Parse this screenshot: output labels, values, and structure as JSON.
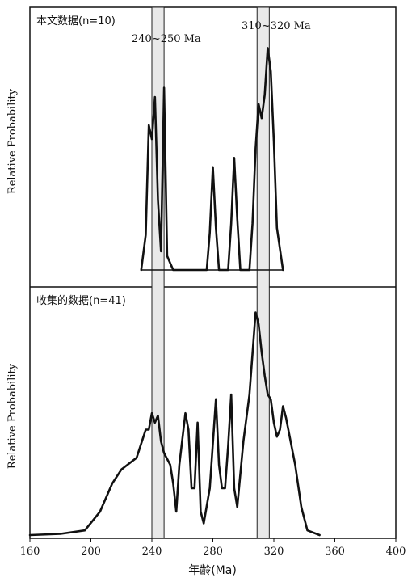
{
  "chart_data": {
    "type": "line",
    "xlabel": "年龄(Ma)",
    "ylabel": "Relative Probability",
    "xlim": [
      160,
      400
    ],
    "xticks": [
      160,
      200,
      240,
      280,
      320,
      360,
      400
    ],
    "highlight_bands": [
      {
        "label": "240~250 Ma",
        "range": [
          240,
          248
        ]
      },
      {
        "label": "310~320 Ma",
        "range": [
          309,
          317
        ]
      }
    ],
    "panels": [
      {
        "title": "本文数据(n=10)",
        "ylim": [
          0,
          1.0
        ],
        "series": {
          "x": [
            233,
            236,
            238,
            240,
            242,
            244,
            246,
            248,
            250,
            254,
            276,
            278,
            280,
            282,
            284,
            290,
            292,
            294,
            296,
            298,
            304,
            306,
            308,
            310,
            312,
            314,
            316,
            318,
            320,
            322,
            326
          ],
          "y": [
            0.0,
            0.15,
            0.62,
            0.56,
            0.74,
            0.3,
            0.08,
            0.78,
            0.06,
            0.0,
            0.0,
            0.16,
            0.44,
            0.18,
            0.0,
            0.0,
            0.2,
            0.48,
            0.22,
            0.0,
            0.0,
            0.2,
            0.52,
            0.71,
            0.65,
            0.75,
            0.95,
            0.85,
            0.55,
            0.18,
            0.0
          ]
        }
      },
      {
        "title": "收集的数据(n=41)",
        "ylim": [
          0,
          1.0
        ],
        "series": {
          "x": [
            160,
            180,
            196,
            206,
            214,
            220,
            224,
            230,
            236,
            238,
            240,
            242,
            244,
            246,
            248,
            252,
            254,
            256,
            258,
            262,
            264,
            266,
            268,
            270,
            272,
            274,
            278,
            282,
            284,
            286,
            288,
            290,
            292,
            294,
            296,
            300,
            304,
            308,
            310,
            312,
            314,
            316,
            318,
            320,
            322,
            324,
            326,
            328,
            334,
            338,
            342,
            350
          ],
          "y": [
            0.0,
            0.005,
            0.02,
            0.1,
            0.22,
            0.28,
            0.3,
            0.33,
            0.45,
            0.45,
            0.52,
            0.48,
            0.51,
            0.4,
            0.35,
            0.3,
            0.22,
            0.1,
            0.3,
            0.52,
            0.45,
            0.2,
            0.2,
            0.48,
            0.1,
            0.05,
            0.2,
            0.58,
            0.3,
            0.2,
            0.2,
            0.38,
            0.6,
            0.2,
            0.12,
            0.4,
            0.6,
            0.95,
            0.9,
            0.78,
            0.68,
            0.6,
            0.58,
            0.48,
            0.42,
            0.45,
            0.55,
            0.5,
            0.3,
            0.12,
            0.02,
            0.0
          ]
        }
      }
    ]
  }
}
